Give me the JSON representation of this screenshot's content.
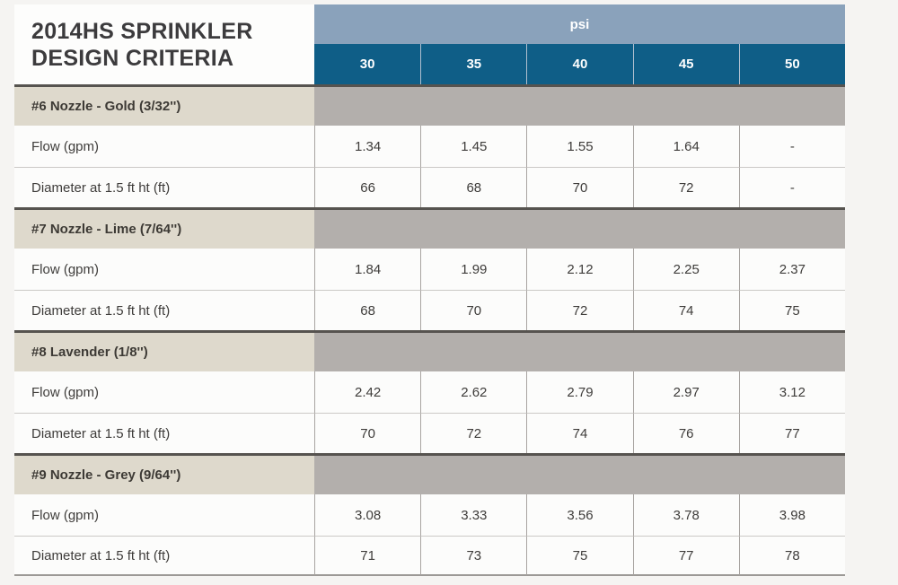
{
  "chart_data": {
    "type": "table",
    "title": "2014HS SPRINKLER DESIGN CRITERIA",
    "column_group_label": "psi",
    "columns": [
      "30",
      "35",
      "40",
      "45",
      "50"
    ],
    "sections": [
      {
        "name": "#6 Nozzle - Gold (3/32'')",
        "rows": [
          {
            "label": "Flow (gpm)",
            "values": [
              "1.34",
              "1.45",
              "1.55",
              "1.64",
              "-"
            ]
          },
          {
            "label": "Diameter at 1.5 ft ht (ft)",
            "values": [
              "66",
              "68",
              "70",
              "72",
              "-"
            ]
          }
        ]
      },
      {
        "name": "#7 Nozzle - Lime (7/64'')",
        "rows": [
          {
            "label": "Flow (gpm)",
            "values": [
              "1.84",
              "1.99",
              "2.12",
              "2.25",
              "2.37"
            ]
          },
          {
            "label": "Diameter at 1.5 ft ht (ft)",
            "values": [
              "68",
              "70",
              "72",
              "74",
              "75"
            ]
          }
        ]
      },
      {
        "name": "#8 Lavender (1/8'')",
        "rows": [
          {
            "label": "Flow (gpm)",
            "values": [
              "2.42",
              "2.62",
              "2.79",
              "2.97",
              "3.12"
            ]
          },
          {
            "label": "Diameter at 1.5 ft ht (ft)",
            "values": [
              "70",
              "72",
              "74",
              "76",
              "77"
            ]
          }
        ]
      },
      {
        "name": "#9 Nozzle - Grey (9/64'')",
        "rows": [
          {
            "label": "Flow (gpm)",
            "values": [
              "3.08",
              "3.33",
              "3.56",
              "3.78",
              "3.98"
            ]
          },
          {
            "label": "Diameter at 1.5 ft ht (ft)",
            "values": [
              "71",
              "73",
              "75",
              "77",
              "78"
            ]
          }
        ]
      }
    ],
    "layout": {
      "grid": true,
      "legend": "none"
    }
  },
  "colors": {
    "psi_band": "#8aa2bb",
    "column_header": "#0f5e87",
    "section_left_background": "#ded9cc",
    "section_right_background": "#b3afac",
    "section_rule": "#56534f",
    "cell_background": "#fcfcfb",
    "page_background": "#f5f4f2",
    "text": "#3e3c3a"
  }
}
